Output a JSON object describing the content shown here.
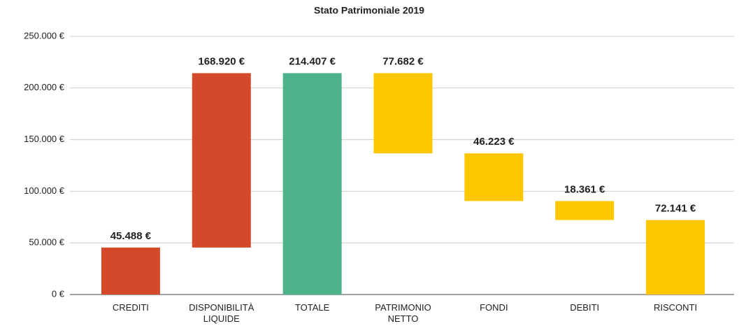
{
  "chart_data": {
    "type": "waterfall",
    "title": "Stato Patrimoniale 2019",
    "categories": [
      "CREDITI",
      "DISPONIBILITÀ LIQUIDE",
      "TOTALE",
      "PATRIMONIO NETTO",
      "FONDI",
      "DEBITI",
      "RISCONTI"
    ],
    "values": [
      45488,
      168920,
      214407,
      77682,
      46223,
      18361,
      72141
    ],
    "value_labels": [
      "45.488 €",
      "168.920 €",
      "214.407 €",
      "77.682 €",
      "46.223 €",
      "18.361 €",
      "72.141 €"
    ],
    "measures": [
      "increase",
      "increase",
      "total",
      "decrease",
      "decrease",
      "decrease",
      "total"
    ],
    "colors": [
      "#d4492a",
      "#d4492a",
      "#4cb38a",
      "#fcc600",
      "#fcc600",
      "#fcc600",
      "#fcc600"
    ],
    "ylim": [
      0,
      250000
    ],
    "yticks": [
      {
        "value": 0,
        "label": "0 €"
      },
      {
        "value": 50000,
        "label": "50.000 €"
      },
      {
        "value": 100000,
        "label": "100.000 €"
      },
      {
        "value": 150000,
        "label": "150.000 €"
      },
      {
        "value": 200000,
        "label": "200.000 €"
      },
      {
        "value": 250000,
        "label": "250.000 €"
      }
    ],
    "grid": true
  }
}
